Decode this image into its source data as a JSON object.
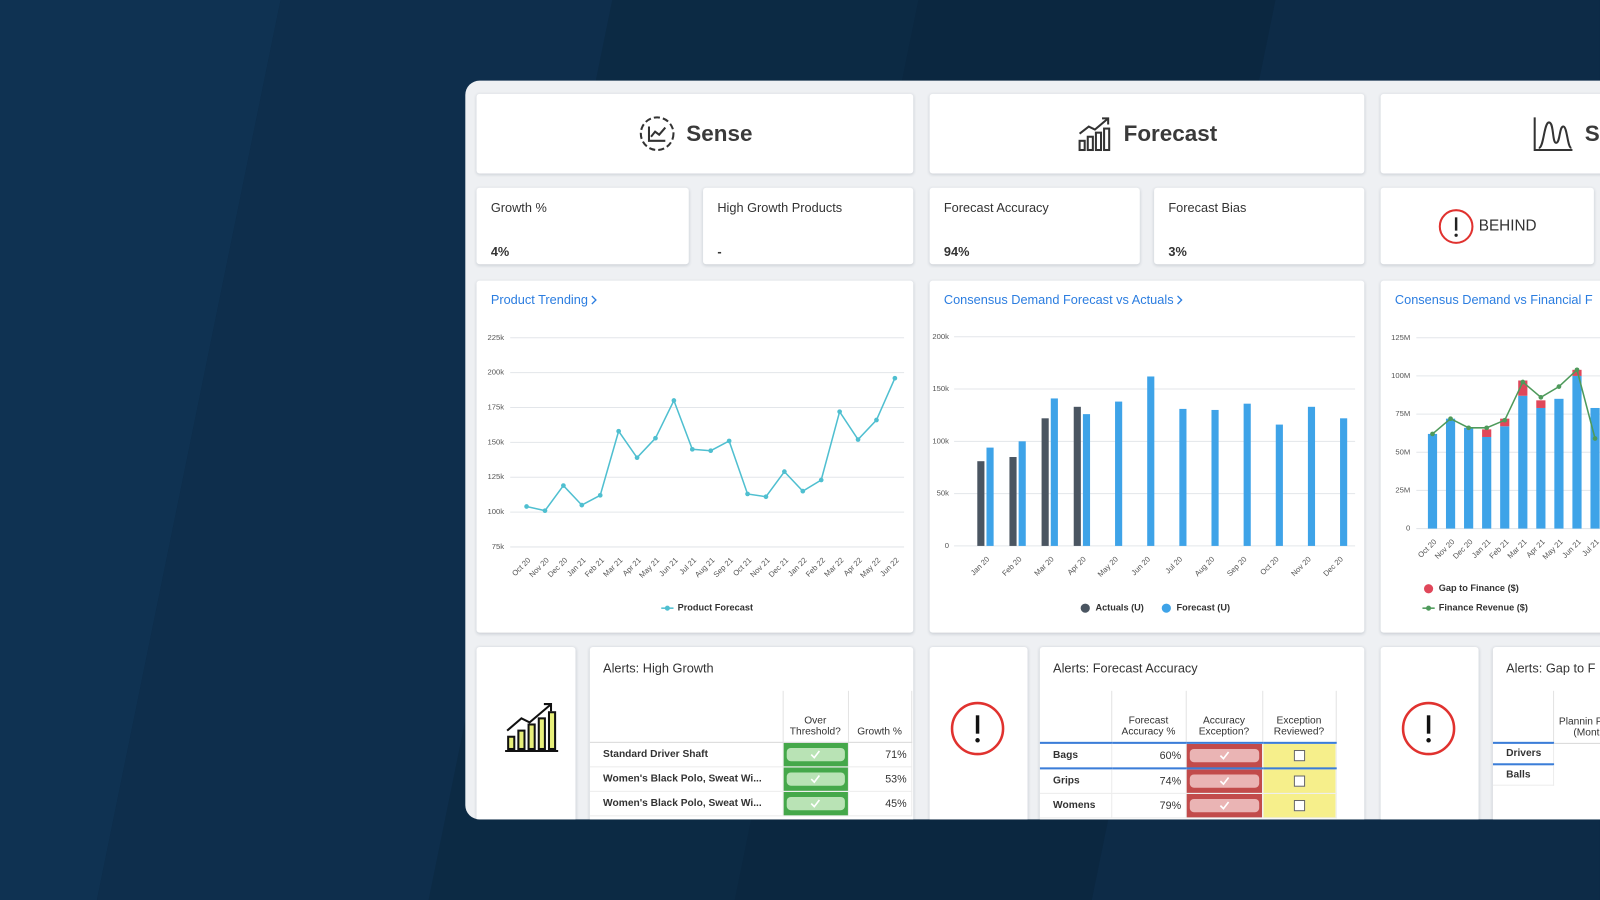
{
  "header": {
    "sense": "Sense",
    "forecast": "Forecast",
    "third": "S"
  },
  "kpis": [
    {
      "label": "Growth %",
      "value": "4%"
    },
    {
      "label": "High Growth Products",
      "value": "-"
    },
    {
      "label": "Forecast Accuracy",
      "value": "94%"
    },
    {
      "label": "Forecast Bias",
      "value": "3%"
    }
  ],
  "status": "BEHIND",
  "chart_data": [
    {
      "type": "line",
      "title": "Product Trending",
      "categories": [
        "Oct 20",
        "Nov 20",
        "Dec 20",
        "Jan 21",
        "Feb 21",
        "Mar 21",
        "Apr 21",
        "May 21",
        "Jun 21",
        "Jul 21",
        "Aug 21",
        "Sep 21",
        "Oct 21",
        "Nov 21",
        "Dec 21",
        "Jan 22",
        "Feb 22",
        "Mar 22",
        "Apr 22",
        "May 22",
        "Jun 22"
      ],
      "series": [
        {
          "name": "Product Forecast",
          "color": "#4fbfd0",
          "values": [
            104000,
            101000,
            119000,
            105000,
            112000,
            158000,
            139000,
            153000,
            180000,
            145000,
            144000,
            151000,
            113000,
            111000,
            129000,
            115000,
            123000,
            172000,
            152000,
            166000,
            196000
          ]
        }
      ],
      "ylim": [
        75000,
        225000
      ],
      "yticks": [
        {
          "value": 75000,
          "label": "75k"
        },
        {
          "value": 100000,
          "label": "100k"
        },
        {
          "value": 125000,
          "label": "125k"
        },
        {
          "value": 150000,
          "label": "150k"
        },
        {
          "value": 175000,
          "label": "175k"
        },
        {
          "value": 200000,
          "label": "200k"
        },
        {
          "value": 225000,
          "label": "225k"
        }
      ],
      "grid": true,
      "legend": "bottom"
    },
    {
      "type": "bar",
      "title": "Consensus Demand Forecast vs Actuals",
      "categories": [
        "Jan 20",
        "Feb 20",
        "Mar 20",
        "Apr 20",
        "May 20",
        "Jun 20",
        "Jul 20",
        "Aug 20",
        "Sep 20",
        "Oct 20",
        "Nov 20",
        "Dec 20"
      ],
      "series": [
        {
          "name": "Actuals (U)",
          "color": "#4a5561",
          "values": [
            81000,
            85000,
            122000,
            133000,
            null,
            null,
            null,
            null,
            null,
            null,
            null,
            null
          ]
        },
        {
          "name": "Forecast (U)",
          "color": "#3ea3e8",
          "values": [
            94000,
            100000,
            141000,
            126000,
            138000,
            162000,
            131000,
            130000,
            136000,
            116000,
            133000,
            122000
          ]
        }
      ],
      "ylim": [
        0,
        200000
      ],
      "yticks": [
        0,
        {
          "value": 50000,
          "label": "50k"
        },
        {
          "value": 100000,
          "label": "100k"
        },
        {
          "value": 150000,
          "label": "150k"
        },
        {
          "value": 200000,
          "label": "200k"
        }
      ],
      "grid": true,
      "legend": "bottom"
    },
    {
      "type": "combo",
      "title": "Consensus Demand vs Financial F",
      "categories": [
        "Oct 20",
        "Nov 20",
        "Dec 20",
        "Jan 21",
        "Feb 21",
        "Mar 21",
        "Apr 21",
        "May 21",
        "Jun 21",
        "Jul 21"
      ],
      "series": [
        {
          "color": "#3ea3e8",
          "values": [
            62000000,
            72000000,
            66000000,
            60000000,
            67000000,
            87000000,
            79000000,
            85000000,
            100000000,
            79000000
          ]
        },
        {
          "name": "Gap to Finance ($)",
          "color": "#e0475a",
          "values": [
            null,
            null,
            null,
            5000000,
            5000000,
            10000000,
            5000000,
            null,
            4000000,
            null
          ]
        },
        {
          "name": "Finance Revenue ($)",
          "color": "#4e9a5b",
          "kind": "line",
          "values": [
            62000000,
            72000000,
            66000000,
            66000000,
            71000000,
            96000000,
            86000000,
            93000000,
            104000000,
            59000000
          ]
        }
      ],
      "ylim": [
        0,
        125000000
      ],
      "yticks": [
        0,
        {
          "value": 25000000,
          "label": "25M"
        },
        {
          "value": 50000000,
          "label": "50M"
        },
        {
          "value": 75000000,
          "label": "75M"
        },
        {
          "value": 100000000,
          "label": "100M"
        },
        {
          "value": 125000000,
          "label": "125M"
        }
      ],
      "grid": true,
      "legend": "bottom-left"
    }
  ],
  "tables": [
    {
      "title": "Alerts: High Growth",
      "columns": [
        "Over Threshold?",
        "Growth %"
      ],
      "rows": [
        [
          "Standard Driver Shaft",
          true,
          "71%"
        ],
        [
          "Women's Black Polo, Sweat Wi...",
          true,
          "53%"
        ],
        [
          "Women's Black Polo, Sweat Wi...",
          true,
          "45%"
        ]
      ]
    },
    {
      "title": "Alerts: Forecast Accuracy",
      "columns": [
        "Forecast Accuracy %",
        "Accuracy Exception?",
        "Exception Reviewed?"
      ],
      "rows": [
        [
          "Bags",
          "60%",
          true,
          false
        ],
        [
          "Grips",
          "74%",
          true,
          false
        ],
        [
          "Womens",
          "79%",
          true,
          false
        ]
      ]
    },
    {
      "title": "Alerts: Gap to F",
      "columns": [
        "Plannin Perio (Month"
      ],
      "rows": [
        [
          "Drivers"
        ],
        [
          "Balls"
        ]
      ]
    }
  ]
}
